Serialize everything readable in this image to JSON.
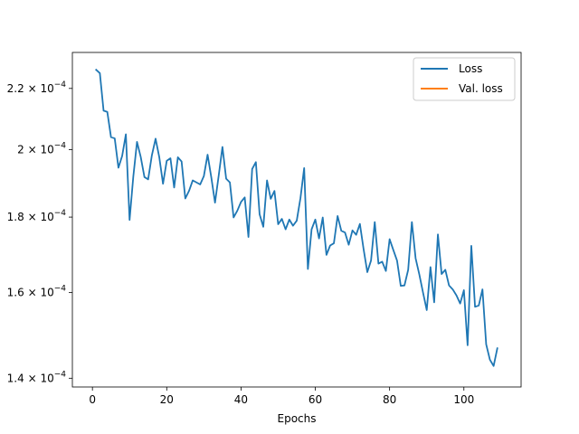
{
  "chart_data": {
    "type": "line",
    "title": "",
    "xlabel": "Epochs",
    "ylabel": "",
    "xlim": [
      -5.4,
      115.4
    ],
    "ylim": [
      0.0001381,
      0.0002327
    ],
    "yscale": "log",
    "grid": false,
    "legend_position": "top-right",
    "x_ticks": [
      0,
      20,
      40,
      60,
      80,
      100
    ],
    "x_tick_labels": [
      "0",
      "20",
      "40",
      "60",
      "80",
      "100"
    ],
    "y_ticks": [
      0.00014,
      0.00016,
      0.00018,
      0.0002,
      0.00022
    ],
    "y_tick_labels": [
      {
        "mantissa": "1.4",
        "exp": "−4"
      },
      {
        "mantissa": "1.6",
        "exp": "−4"
      },
      {
        "mantissa": "1.8",
        "exp": "−4"
      },
      {
        "mantissa": "2",
        "exp": "−4"
      },
      {
        "mantissa": "2.2",
        "exp": "−4"
      }
    ],
    "series": [
      {
        "name": "Loss",
        "color": "#1f77b4",
        "x": [
          1,
          2,
          3,
          4,
          5,
          6,
          7,
          8,
          9,
          10,
          11,
          12,
          13,
          14,
          15,
          16,
          17,
          18,
          19,
          20,
          21,
          22,
          23,
          24,
          25,
          26,
          27,
          28,
          29,
          30,
          31,
          32,
          33,
          34,
          35,
          36,
          37,
          38,
          39,
          40,
          41,
          42,
          43,
          44,
          45,
          46,
          47,
          48,
          49,
          50,
          51,
          52,
          53,
          54,
          55,
          56,
          57,
          58,
          59,
          60,
          61,
          62,
          63,
          64,
          65,
          66,
          67,
          68,
          69,
          70,
          71,
          72,
          73,
          74,
          75,
          76,
          77,
          78,
          79,
          80,
          81,
          82,
          83,
          84,
          85,
          86,
          87,
          88,
          89,
          90,
          91,
          92,
          93,
          94,
          95,
          96,
          97,
          98,
          99,
          100,
          101,
          102,
          103,
          104,
          105,
          106,
          107,
          108,
          109
        ],
        "y": [
          0.0002265,
          0.0002253,
          0.0002125,
          0.0002121,
          0.0002039,
          0.0002035,
          0.0001944,
          0.000198,
          0.0002048,
          0.0001792,
          0.0001917,
          0.0002024,
          0.0001977,
          0.0001916,
          0.0001909,
          0.0001982,
          0.0002034,
          0.0001976,
          0.0001896,
          0.0001965,
          0.0001973,
          0.0001885,
          0.0001976,
          0.0001963,
          0.0001853,
          0.0001875,
          0.0001906,
          0.00019,
          0.0001894,
          0.0001919,
          0.0001984,
          0.0001915,
          0.0001841,
          0.0001921,
          0.0002008,
          0.0001911,
          0.00019,
          0.0001799,
          0.0001818,
          0.0001843,
          0.0001856,
          0.0001745,
          0.000194,
          0.0001961,
          0.0001808,
          0.0001773,
          0.0001906,
          0.0001852,
          0.0001875,
          0.000178,
          0.0001795,
          0.0001766,
          0.0001793,
          0.0001776,
          0.000179,
          0.0001854,
          0.0001943,
          0.000166,
          0.0001766,
          0.0001793,
          0.0001741,
          0.0001799,
          0.0001697,
          0.0001722,
          0.0001728,
          0.0001803,
          0.0001762,
          0.0001757,
          0.0001724,
          0.0001763,
          0.0001751,
          0.0001781,
          0.0001712,
          0.0001652,
          0.0001682,
          0.0001786,
          0.0001674,
          0.0001679,
          0.0001655,
          0.0001739,
          0.000171,
          0.0001682,
          0.0001617,
          0.0001618,
          0.0001658,
          0.0001786,
          0.0001688,
          0.0001646,
          0.00016,
          0.0001557,
          0.0001665,
          0.0001576,
          0.0001752,
          0.0001647,
          0.0001658,
          0.0001618,
          0.0001608,
          0.0001593,
          0.0001573,
          0.0001606,
          0.0001474,
          0.0001721,
          0.0001565,
          0.0001568,
          0.0001608,
          0.0001476,
          0.0001441,
          0.0001427,
          0.0001467
        ]
      },
      {
        "name": "Val. loss",
        "color": "#ff7f0e",
        "x": [],
        "y": []
      }
    ]
  }
}
